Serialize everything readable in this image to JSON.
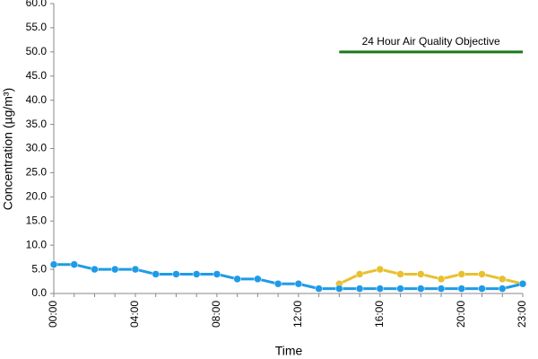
{
  "chart_data": {
    "type": "line",
    "x_label": "Time",
    "y_label": "Concentration (µg/m³)",
    "categories": [
      "00:00",
      null,
      null,
      null,
      "04:00",
      null,
      null,
      null,
      "08:00",
      null,
      null,
      null,
      "12:00",
      null,
      null,
      null,
      "16:00",
      null,
      null,
      null,
      "20:00",
      null,
      null,
      "23:00"
    ],
    "series": [
      {
        "color": "#1e9be8",
        "values": [
          6,
          6,
          5,
          5,
          5,
          4,
          4,
          4,
          4,
          3,
          3,
          2,
          2,
          1,
          1,
          1,
          1,
          1,
          1,
          1,
          1,
          1,
          1,
          2
        ]
      },
      {
        "color": "#e8c030",
        "values": [
          null,
          null,
          null,
          null,
          null,
          null,
          null,
          null,
          null,
          null,
          null,
          null,
          null,
          null,
          2,
          4,
          5,
          4,
          4,
          3,
          4,
          4,
          3,
          2
        ]
      }
    ],
    "objective": {
      "label": "24 Hour Air Quality Objective",
      "value": 50,
      "color": "#1a7a1a"
    },
    "ylim": [
      0,
      60
    ],
    "yticks": [
      {
        "value": 0,
        "label": "0.0"
      },
      {
        "value": 5,
        "label": "5.0"
      },
      {
        "value": 10,
        "label": "10.0"
      },
      {
        "value": 15,
        "label": "15.0"
      },
      {
        "value": 20,
        "label": "20.0"
      },
      {
        "value": 25,
        "label": "25.0"
      },
      {
        "value": 30,
        "label": "30.0"
      },
      {
        "value": 35,
        "label": "35.0"
      },
      {
        "value": 40,
        "label": "40.0"
      },
      {
        "value": 45,
        "label": "45.0"
      },
      {
        "value": 50,
        "label": "50.0"
      },
      {
        "value": 55,
        "label": "55.0"
      },
      {
        "value": 60,
        "label": "60.0"
      }
    ],
    "grid": false
  }
}
